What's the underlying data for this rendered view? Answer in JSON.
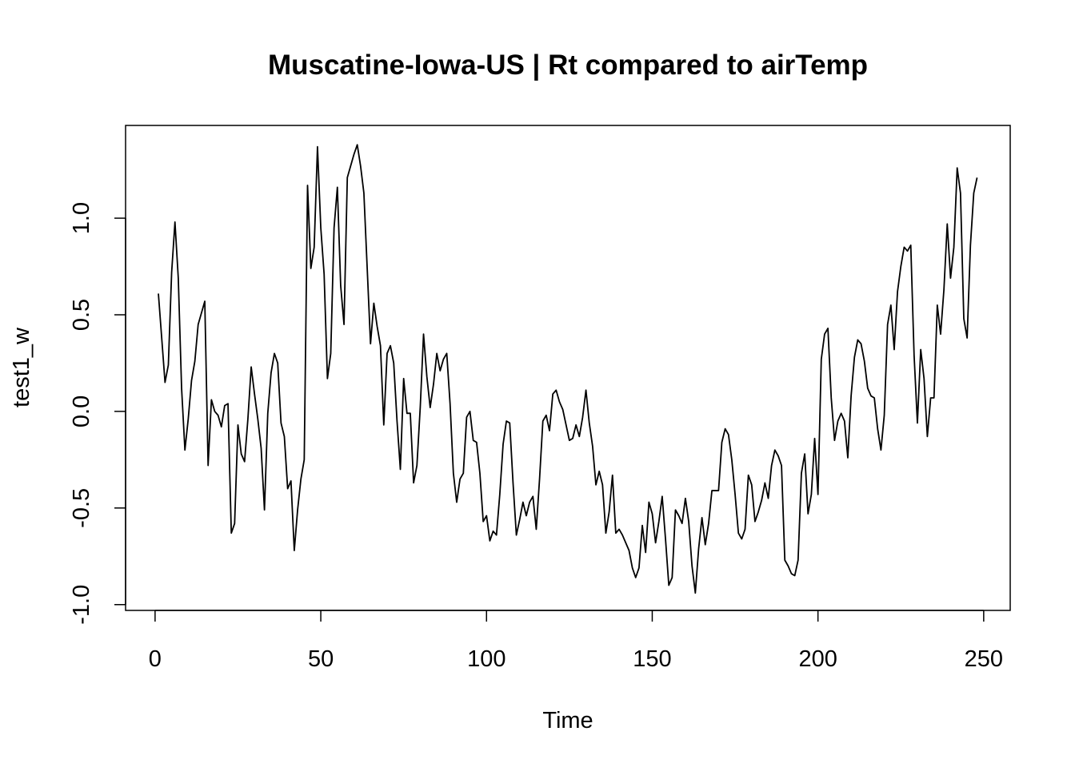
{
  "chart_data": {
    "type": "line",
    "title": "Muscatine-Iowa-US | Rt compared to airTemp",
    "xlabel": "Time",
    "ylabel": "test1_w",
    "xlim": [
      -8.9,
      258
    ],
    "ylim": [
      -1.03,
      1.48
    ],
    "xticks": [
      0,
      50,
      100,
      150,
      200,
      250
    ],
    "xtick_labels": [
      "0",
      "50",
      "100",
      "150",
      "200",
      "250"
    ],
    "yticks": [
      -1.0,
      -0.5,
      0.0,
      0.5,
      1.0
    ],
    "ytick_labels": [
      "-1.0",
      "-0.5",
      "0.0",
      "0.5",
      "1.0"
    ],
    "grid": false,
    "series": [
      {
        "x_start": 1,
        "x_step": 1,
        "values": [
          0.61,
          0.38,
          0.15,
          0.24,
          0.72,
          0.98,
          0.69,
          0.12,
          -0.2,
          -0.04,
          0.16,
          0.26,
          0.45,
          0.51,
          0.57,
          -0.28,
          0.06,
          0.0,
          -0.02,
          -0.08,
          0.03,
          0.04,
          -0.63,
          -0.58,
          -0.07,
          -0.22,
          -0.26,
          -0.04,
          0.23,
          0.09,
          -0.04,
          -0.19,
          -0.51,
          -0.01,
          0.2,
          0.3,
          0.25,
          -0.06,
          -0.13,
          -0.4,
          -0.36,
          -0.72,
          -0.51,
          -0.35,
          -0.25,
          1.17,
          0.74,
          0.85,
          1.37,
          0.95,
          0.71,
          0.17,
          0.3,
          0.95,
          1.16,
          0.65,
          0.45,
          1.21,
          1.27,
          1.33,
          1.38,
          1.27,
          1.13,
          0.74,
          0.35,
          0.56,
          0.44,
          0.34,
          -0.07,
          0.3,
          0.34,
          0.25,
          -0.05,
          -0.3,
          0.17,
          -0.01,
          -0.01,
          -0.37,
          -0.28,
          0.02,
          0.4,
          0.18,
          0.02,
          0.14,
          0.3,
          0.21,
          0.27,
          0.3,
          0.04,
          -0.32,
          -0.47,
          -0.35,
          -0.32,
          -0.03,
          0.0,
          -0.15,
          -0.16,
          -0.32,
          -0.57,
          -0.54,
          -0.67,
          -0.62,
          -0.64,
          -0.43,
          -0.17,
          -0.05,
          -0.06,
          -0.37,
          -0.64,
          -0.56,
          -0.47,
          -0.54,
          -0.47,
          -0.44,
          -0.61,
          -0.35,
          -0.05,
          -0.02,
          -0.1,
          0.09,
          0.11,
          0.05,
          0.01,
          -0.07,
          -0.15,
          -0.14,
          -0.07,
          -0.13,
          -0.03,
          0.11,
          -0.06,
          -0.18,
          -0.38,
          -0.31,
          -0.38,
          -0.63,
          -0.52,
          -0.33,
          -0.63,
          -0.61,
          -0.64,
          -0.68,
          -0.72,
          -0.81,
          -0.86,
          -0.81,
          -0.59,
          -0.73,
          -0.47,
          -0.53,
          -0.68,
          -0.57,
          -0.44,
          -0.66,
          -0.9,
          -0.86,
          -0.51,
          -0.54,
          -0.58,
          -0.45,
          -0.57,
          -0.8,
          -0.94,
          -0.71,
          -0.55,
          -0.69,
          -0.58,
          -0.41,
          -0.41,
          -0.41,
          -0.16,
          -0.09,
          -0.12,
          -0.25,
          -0.43,
          -0.63,
          -0.66,
          -0.61,
          -0.33,
          -0.38,
          -0.57,
          -0.52,
          -0.46,
          -0.37,
          -0.45,
          -0.28,
          -0.2,
          -0.23,
          -0.28,
          -0.77,
          -0.8,
          -0.84,
          -0.85,
          -0.77,
          -0.32,
          -0.22,
          -0.53,
          -0.43,
          -0.14,
          -0.43,
          0.27,
          0.4,
          0.43,
          0.07,
          -0.15,
          -0.05,
          -0.01,
          -0.05,
          -0.24,
          0.08,
          0.28,
          0.37,
          0.35,
          0.26,
          0.12,
          0.08,
          0.07,
          -0.09,
          -0.2,
          -0.02,
          0.45,
          0.55,
          0.32,
          0.62,
          0.75,
          0.85,
          0.83,
          0.86,
          0.29,
          -0.06,
          0.32,
          0.17,
          -0.13,
          0.07,
          0.07,
          0.55,
          0.4,
          0.63,
          0.97,
          0.69,
          0.85,
          1.26,
          1.13,
          0.48,
          0.38,
          0.86,
          1.13,
          1.21
        ]
      }
    ]
  }
}
